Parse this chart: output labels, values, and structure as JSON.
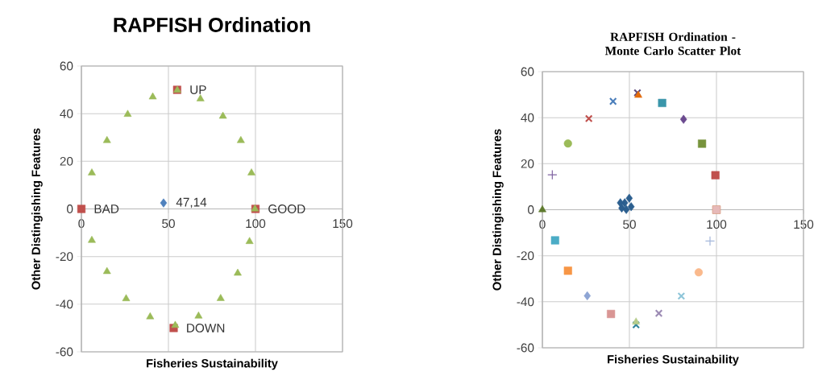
{
  "chart_data": [
    {
      "type": "scatter",
      "title": "RAPFISH Ordination",
      "xlabel": "Fisheries Sustainability",
      "ylabel": "Other Distingishing Features",
      "xlim": [
        0,
        150
      ],
      "ylim": [
        -60,
        60
      ],
      "xticks": [
        0,
        50,
        100,
        150
      ],
      "yticks": [
        -60,
        -40,
        -20,
        0,
        20,
        40,
        60
      ],
      "grid": true,
      "series": [
        {
          "color": "#c0504d",
          "marker": "square",
          "x": [
            0,
            100,
            55,
            53
          ],
          "values": [
            0,
            0,
            50,
            -50
          ]
        },
        {
          "color": "#9bbb59",
          "marker": "triangle",
          "x": [
            41,
            26.6,
            14.7,
            6.0,
            55.1,
            68.4,
            81.3,
            91.6,
            97.7,
            99.7,
            96.6,
            89.8,
            80,
            67.3,
            53.9,
            39.5,
            25.7,
            14.7,
            6.0
          ],
          "values": [
            47,
            39.7,
            28.7,
            15.1,
            49.8,
            46.2,
            38.9,
            28.7,
            15.1,
            0,
            -13.7,
            -27,
            -37.6,
            -45,
            -48.9,
            -45.3,
            -37.7,
            -26.3,
            -13.2
          ]
        },
        {
          "color": "#4f81bd",
          "marker": "diamond",
          "x": [
            47.2
          ],
          "values": [
            2.5
          ]
        }
      ],
      "annotations": [
        {
          "text": "BAD",
          "x": 0,
          "y": 0
        },
        {
          "text": "GOOD",
          "x": 100,
          "y": 0
        },
        {
          "text": "UP",
          "x": 55,
          "y": 50
        },
        {
          "text": "DOWN",
          "x": 53,
          "y": -50
        },
        {
          "text": "47,14",
          "x": 47.2,
          "y": 2.5
        }
      ]
    },
    {
      "type": "scatter",
      "title": "RAPFISH Ordination  - Monte Carlo Scatter Plot",
      "xlabel": "Fisheries Sustainability",
      "ylabel": "Other Distingishing  Features",
      "xlim": [
        0,
        150
      ],
      "ylim": [
        -60,
        60
      ],
      "xticks": [
        0,
        50,
        100,
        150
      ],
      "yticks": [
        -60,
        -40,
        -20,
        0,
        20,
        40,
        60
      ],
      "grid": true,
      "series": [
        {
          "color": "#4a7ebb",
          "marker": "cross",
          "x": [
            40.6
          ],
          "values": [
            47.1
          ]
        },
        {
          "color": "#604a7b",
          "marker": "cross",
          "x": [
            54.6
          ],
          "values": [
            50.8
          ]
        },
        {
          "color": "#e46c0a",
          "marker": "triangle",
          "x": [
            55.1
          ],
          "values": [
            49.7
          ]
        },
        {
          "color": "#3a96aa",
          "marker": "square",
          "x": [
            68.8
          ],
          "values": [
            46.4
          ]
        },
        {
          "color": "#6b4a8f",
          "marker": "diamond",
          "x": [
            81.1
          ],
          "values": [
            39.3
          ]
        },
        {
          "color": "#77933c",
          "marker": "square",
          "x": [
            91.7
          ],
          "values": [
            28.7
          ]
        },
        {
          "color": "#c0504d",
          "marker": "square",
          "x": [
            99.4
          ],
          "values": [
            15.0
          ]
        },
        {
          "color": "#b65708",
          "marker": "square",
          "x": [
            100
          ],
          "values": [
            0
          ]
        },
        {
          "color": "#e6b9b8",
          "marker": "square",
          "x": [
            100
          ],
          "values": [
            0
          ]
        },
        {
          "color": "#a5b8db",
          "marker": "plus",
          "x": [
            96.3
          ],
          "values": [
            -13.6
          ]
        },
        {
          "color": "#fab98c",
          "marker": "circle",
          "x": [
            89.8
          ],
          "values": [
            -27.2
          ]
        },
        {
          "color": "#8fc6d9",
          "marker": "cross",
          "x": [
            79.8
          ],
          "values": [
            -37.5
          ]
        },
        {
          "color": "#9c8bb4",
          "marker": "cross",
          "x": [
            66.9
          ],
          "values": [
            -45
          ]
        },
        {
          "color": "#31859c",
          "marker": "cross",
          "x": [
            53.8
          ],
          "values": [
            -50
          ]
        },
        {
          "color": "#b6cc8a",
          "marker": "triangle",
          "x": [
            53.8
          ],
          "values": [
            -48.8
          ]
        },
        {
          "color": "#d99694",
          "marker": "square",
          "x": [
            39.4
          ],
          "values": [
            -45.3
          ]
        },
        {
          "color": "#8ea5d4",
          "marker": "diamond",
          "x": [
            25.8
          ],
          "values": [
            -37.4
          ]
        },
        {
          "color": "#f79646",
          "marker": "square",
          "x": [
            14.7
          ],
          "values": [
            -26.5
          ]
        },
        {
          "color": "#4bacc6",
          "marker": "square",
          "x": [
            7.3
          ],
          "values": [
            -13.3
          ]
        },
        {
          "color": "#5e7a2e",
          "marker": "triangle",
          "x": [
            0
          ],
          "values": [
            0
          ]
        },
        {
          "color": "#8064a2",
          "marker": "plus",
          "x": [
            5.7
          ],
          "values": [
            15.2
          ]
        },
        {
          "color": "#9bbb59",
          "marker": "circle",
          "x": [
            14.7
          ],
          "values": [
            28.8
          ]
        },
        {
          "color": "#c0504d",
          "marker": "cross",
          "x": [
            26.7
          ],
          "values": [
            39.6
          ]
        },
        {
          "color": "#2c5f8f",
          "marker": "diamond",
          "x": [
            45.6,
            47.3,
            49.9,
            51,
            44.8,
            48.2
          ],
          "values": [
            0.7,
            3.0,
            5.0,
            1.3,
            3.0,
            0.1
          ]
        }
      ]
    }
  ]
}
